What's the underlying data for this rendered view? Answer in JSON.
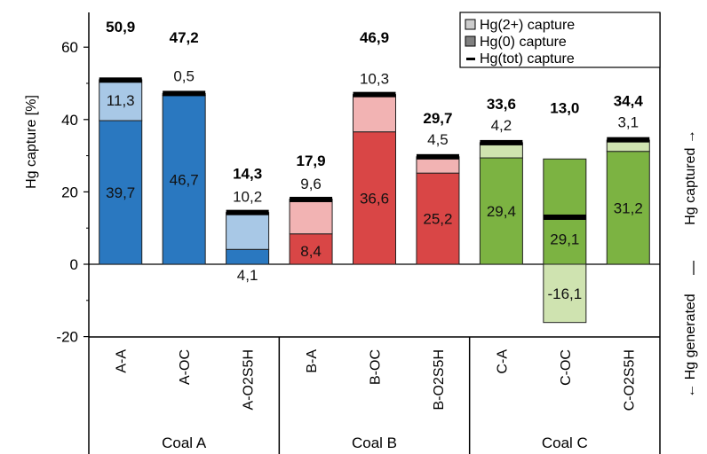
{
  "chart_data": {
    "type": "bar",
    "subtype": "stacked",
    "ylabel": "Hg capture [%]",
    "ylim": [
      -20,
      70
    ],
    "yticks": [
      -20,
      0,
      20,
      40,
      60
    ],
    "right_label_top": "Hg captured →",
    "right_label_bottom": "← Hg generated",
    "categories": [
      "A-A",
      "A-OC",
      "A-O2S5H",
      "B-A",
      "B-OC",
      "B-O2S5H",
      "C-A",
      "C-OC",
      "C-O2S5H"
    ],
    "groups": [
      {
        "name": "Coal A",
        "categories": [
          "A-A",
          "A-OC",
          "A-O2S5H"
        ]
      },
      {
        "name": "Coal B",
        "categories": [
          "B-A",
          "B-OC",
          "B-O2S5H"
        ]
      },
      {
        "name": "Coal C",
        "categories": [
          "C-A",
          "C-OC",
          "C-O2S5H"
        ]
      }
    ],
    "series": [
      {
        "name": "Hg(2+) capture",
        "values": [
          11.3,
          0.5,
          10.2,
          9.6,
          10.3,
          4.5,
          4.2,
          -16.1,
          3.1
        ],
        "labels": [
          "11,3",
          "0,5",
          "10,2",
          "9,6",
          "10,3",
          "4,5",
          "4,2",
          "-16,1",
          "3,1"
        ]
      },
      {
        "name": "Hg(0) capture",
        "values": [
          39.7,
          46.7,
          4.1,
          8.4,
          36.6,
          25.2,
          29.4,
          29.1,
          31.2
        ],
        "labels": [
          "39,7",
          "46,7",
          "4,1",
          "8,4",
          "36,6",
          "25,2",
          "29,4",
          "29,1",
          "31,2"
        ]
      },
      {
        "name": "Hg(tot) capture",
        "values": [
          50.9,
          47.2,
          14.3,
          17.9,
          46.9,
          29.7,
          33.6,
          13.0,
          34.4
        ],
        "labels": [
          "50,9",
          "47,2",
          "14,3",
          "17,9",
          "46,9",
          "29,7",
          "33,6",
          "13,0",
          "34,4"
        ]
      }
    ],
    "colors": {
      "coal_a_dark": "#2a78c0",
      "coal_a_light": "#a8c8e6",
      "coal_b_dark": "#d94646",
      "coal_b_light": "#f2b3b3",
      "coal_c_dark": "#7cb342",
      "coal_c_light": "#cfe3b0",
      "legend_hg2": "#cccccc",
      "legend_hg0": "#808080",
      "total_marker": "#000000"
    },
    "legend_position": "top-right",
    "grid": false
  }
}
